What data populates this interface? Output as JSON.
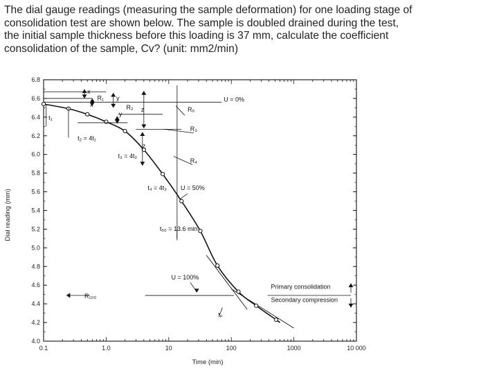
{
  "question": {
    "lines": [
      "The dial gauge readings (measuring the sample deformation) for one loading stage of",
      "consolidation test are shown below. The sample is doubled drained during the test,",
      "the initial sample thickness before this loading is 37 mm, calculate the coefficient",
      "consolidation of the sample, Cv? (unit: mm2/min)"
    ]
  },
  "chart_data": {
    "type": "line",
    "xscale": "log",
    "xlim": [
      0.1,
      10000
    ],
    "ylim": [
      4.0,
      6.8
    ],
    "xlabel": "Time (min)",
    "ylabel": "Dial reading (mm)",
    "xticks": [
      "0.1",
      "1.0",
      "10",
      "100",
      "1000",
      "10 000"
    ],
    "yticks": [
      "6.8",
      "6.6",
      "6.4",
      "6.2",
      "6.0",
      "5.8",
      "5.6",
      "5.4",
      "5.2",
      "5.0",
      "4.8",
      "4.6",
      "4.4",
      "4.2",
      "4.0"
    ],
    "grid": false,
    "series": [
      {
        "x": [
          0.1,
          0.25,
          0.5,
          1.0,
          2.0,
          4.0,
          8.0,
          16.0,
          32.0,
          60.0,
          130.0,
          250.0,
          520.0
        ],
        "y": [
          6.54,
          6.49,
          6.43,
          6.35,
          6.25,
          6.05,
          5.79,
          5.5,
          5.18,
          4.81,
          4.53,
          4.38,
          4.23
        ]
      }
    ],
    "reference_lines": {
      "U0_dial": 6.56,
      "U50_dial": 5.5,
      "U100_dial": 4.49,
      "t50_min": 13.6
    },
    "annotations": {
      "u0": "U = 0%",
      "u50": "U = 50%",
      "u100": "U = 100%",
      "r0": "R₀",
      "r1": "R₁",
      "r2": "R₂",
      "r3": "R₃",
      "r4": "R₄",
      "r100": "R₁₀₀",
      "t1": "t₁",
      "t2": "t₂ = 4t₁",
      "t3": "t₃ = 4t₂",
      "t4": "t₄ = 4t₃",
      "t50": "t₅₀ = 13.6 min",
      "tp": "tₚ",
      "x": "x",
      "y": "y",
      "z": "z",
      "primary": "Primary consolidation",
      "secondary": "Secondary compression"
    }
  }
}
